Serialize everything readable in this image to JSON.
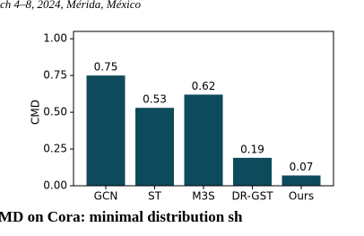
{
  "header": {
    "text": "ch 4–8, 2024, Mérida, México"
  },
  "chart_data": {
    "type": "bar",
    "categories": [
      "GCN",
      "ST",
      "M3S",
      "DR-GST",
      "Ours"
    ],
    "values": [
      0.75,
      0.53,
      0.62,
      0.19,
      0.07
    ],
    "value_labels": [
      "0.75",
      "0.53",
      "0.62",
      "0.19",
      "0.07"
    ],
    "color": "#0d4a5c",
    "y_label": "CMD",
    "ylim": [
      0,
      1.05
    ],
    "yticks": [
      {
        "value": 0,
        "label": "0.00"
      },
      0.25,
      {
        "value": 0.5,
        "label": "0.50"
      },
      0.75,
      {
        "value": 1,
        "label": "1.00"
      }
    ]
  },
  "caption": {
    "text": "MD on Cora: minimal distribution sh"
  }
}
